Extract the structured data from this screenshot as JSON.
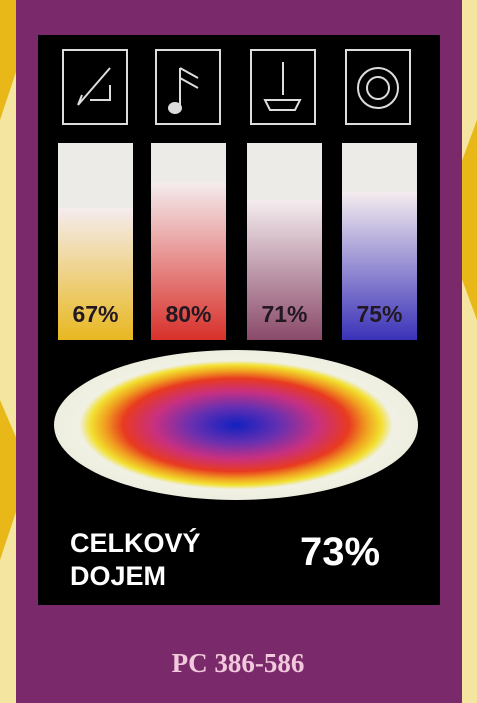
{
  "chart_data": {
    "type": "bar",
    "categories": [
      null,
      null,
      null,
      null
    ],
    "values": [
      67,
      80,
      71,
      75
    ],
    "value_labels": [
      "67%",
      "80%",
      "71%",
      "75%"
    ],
    "colors": [
      "#e8b820",
      "#d8302a",
      "#8a4a6a",
      "#3a32b8"
    ],
    "ylim": [
      0,
      100
    ]
  },
  "overall": {
    "label": [
      "CELKOVÝ",
      "DOJEM"
    ],
    "score": "73%"
  },
  "platform": "PC 386-586"
}
